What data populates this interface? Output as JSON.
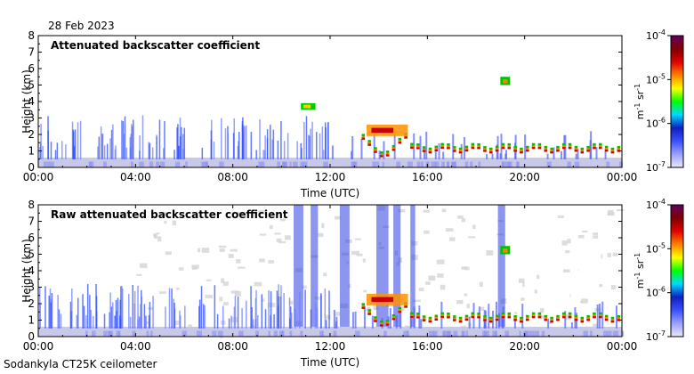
{
  "header": {
    "date": "28 Feb 2023"
  },
  "footer": {
    "instrument": "Sodankyla CT25K ceilometer"
  },
  "colorbar": {
    "unit_main": "m",
    "unit_exp1": "-1",
    "unit_mid": " sr",
    "unit_exp2": "-1",
    "tick_base": "10",
    "ticks": [
      {
        "exp": "-4",
        "value": 0.0001
      },
      {
        "exp": "-5",
        "value": 1e-05
      },
      {
        "exp": "-6",
        "value": 1e-06
      },
      {
        "exp": "-7",
        "value": 1e-07
      }
    ],
    "colors": [
      "#e8e8f8",
      "#9aa0ff",
      "#3850ff",
      "#1020c0",
      "#00d8ff",
      "#00ff00",
      "#ffff00",
      "#ff8000",
      "#e00000",
      "#800000",
      "#600060"
    ]
  },
  "chart_data": [
    {
      "type": "heatmap",
      "title": "Attenuated backscatter coefficient",
      "xlabel": "Time (UTC)",
      "ylabel": "Height (km)",
      "xlim": [
        "00:00",
        "24:00"
      ],
      "ylim": [
        0,
        8
      ],
      "x_ticks": [
        "00:00",
        "04:00",
        "08:00",
        "12:00",
        "16:00",
        "20:00",
        "00:00"
      ],
      "y_ticks": [
        "0",
        "1",
        "2",
        "3",
        "4",
        "5",
        "6",
        "7",
        "8"
      ],
      "colorscale": "log",
      "zlim": [
        1e-07,
        0.0001
      ],
      "features": [
        {
          "label": "boundary layer",
          "time_start": 0,
          "time_end": 24,
          "height_top": 0.6
        },
        {
          "label": "low cloud/aerosol top",
          "time_start": 0,
          "time_end": 12,
          "height_top": 3.2
        },
        {
          "label": "cloud layer",
          "time_start": 13.3,
          "time_end": 24,
          "height_base": 0.8,
          "height_top": 2.5
        },
        {
          "label": "elevated layer",
          "time_start": 10.8,
          "time_end": 11.4,
          "height": 3.7
        },
        {
          "label": "elevated layer",
          "time_start": 19.0,
          "time_end": 19.4,
          "height": 5.2
        }
      ]
    },
    {
      "type": "heatmap",
      "title": "Raw attenuated backscatter coefficient",
      "xlabel": "Time (UTC)",
      "ylabel": "Height (km)",
      "xlim": [
        "00:00",
        "24:00"
      ],
      "ylim": [
        0,
        8
      ],
      "x_ticks": [
        "00:00",
        "04:00",
        "08:00",
        "12:00",
        "16:00",
        "20:00",
        "00:00"
      ],
      "y_ticks": [
        "0",
        "1",
        "2",
        "3",
        "4",
        "5",
        "6",
        "7",
        "8"
      ],
      "colorscale": "log",
      "zlim": [
        1e-07,
        0.0001
      ],
      "features": [
        {
          "label": "boundary layer",
          "time_start": 0,
          "time_end": 24,
          "height_top": 0.6
        },
        {
          "label": "cloud layer",
          "time_start": 13.3,
          "time_end": 24,
          "height_base": 0.8,
          "height_top": 2.5
        },
        {
          "label": "precipitation columns",
          "time_start": 10.5,
          "time_end": 15.0,
          "height_top": 8
        }
      ]
    }
  ]
}
